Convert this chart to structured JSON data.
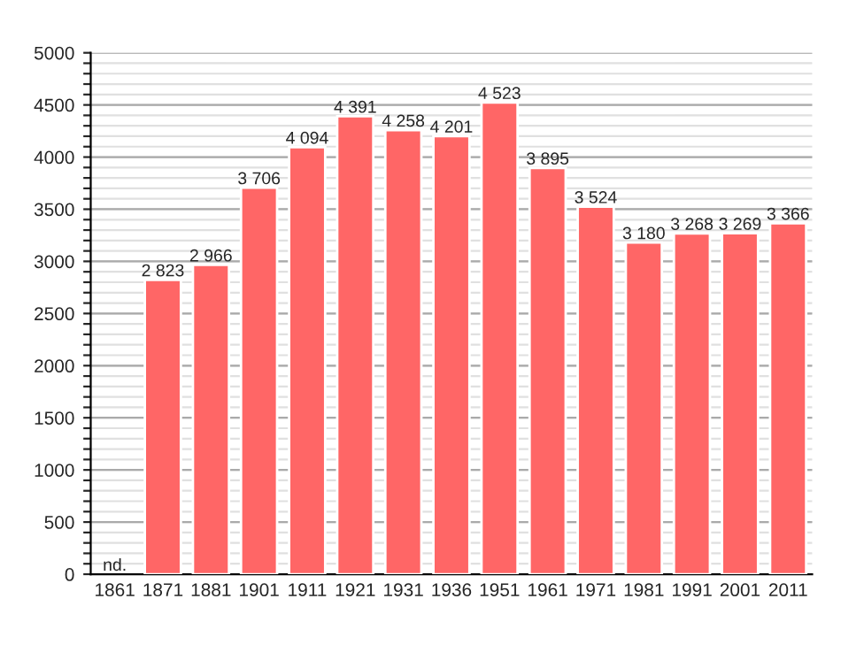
{
  "chart_data": {
    "type": "bar",
    "categories": [
      "1861",
      "1871",
      "1881",
      "1901",
      "1911",
      "1921",
      "1931",
      "1936",
      "1951",
      "1961",
      "1971",
      "1981",
      "1991",
      "2001",
      "2011"
    ],
    "values": [
      null,
      2823,
      2966,
      3706,
      4094,
      4391,
      4258,
      4201,
      4523,
      3895,
      3524,
      3180,
      3268,
      3269,
      3366
    ],
    "value_labels": [
      "nd.",
      "2 823",
      "2 966",
      "3 706",
      "4 094",
      "4 391",
      "4 258",
      "4 201",
      "4 523",
      "3 895",
      "3 524",
      "3 180",
      "3 268",
      "3 269",
      "3 366"
    ],
    "color": "#ff6666",
    "ylim": [
      0,
      5000
    ],
    "yticks": [
      0,
      {
        "value": 100,
        "label": null
      },
      {
        "value": 200,
        "label": null
      },
      {
        "value": 300,
        "label": null
      },
      {
        "value": 400,
        "label": null
      },
      500,
      {
        "value": 600,
        "label": null
      },
      {
        "value": 700,
        "label": null
      },
      {
        "value": 800,
        "label": null
      },
      {
        "value": 900,
        "label": null
      },
      1000,
      {
        "value": 1100,
        "label": null
      },
      {
        "value": 1200,
        "label": null
      },
      {
        "value": 1300,
        "label": null
      },
      {
        "value": 1400,
        "label": null
      },
      1500,
      {
        "value": 1600,
        "label": null
      },
      {
        "value": 1700,
        "label": null
      },
      {
        "value": 1800,
        "label": null
      },
      {
        "value": 1900,
        "label": null
      },
      2000,
      {
        "value": 2100,
        "label": null
      },
      {
        "value": 2200,
        "label": null
      },
      {
        "value": 2300,
        "label": null
      },
      {
        "value": 2400,
        "label": null
      },
      2500,
      {
        "value": 2600,
        "label": null
      },
      {
        "value": 2700,
        "label": null
      },
      {
        "value": 2800,
        "label": null
      },
      {
        "value": 2900,
        "label": null
      },
      3000,
      {
        "value": 3100,
        "label": null
      },
      {
        "value": 3200,
        "label": null
      },
      {
        "value": 3300,
        "label": null
      },
      {
        "value": 3400,
        "label": null
      },
      3500,
      {
        "value": 3600,
        "label": null
      },
      {
        "value": 3700,
        "label": null
      },
      {
        "value": 3800,
        "label": null
      },
      {
        "value": 3900,
        "label": null
      },
      4000,
      {
        "value": 4100,
        "label": null
      },
      {
        "value": 4200,
        "label": null
      },
      {
        "value": 4300,
        "label": null
      },
      {
        "value": 4400,
        "label": null
      },
      4500,
      {
        "value": 4600,
        "label": null
      },
      {
        "value": 4700,
        "label": null
      },
      {
        "value": 4800,
        "label": null
      },
      {
        "value": 4900,
        "label": null
      },
      5000
    ],
    "grid": "y"
  }
}
